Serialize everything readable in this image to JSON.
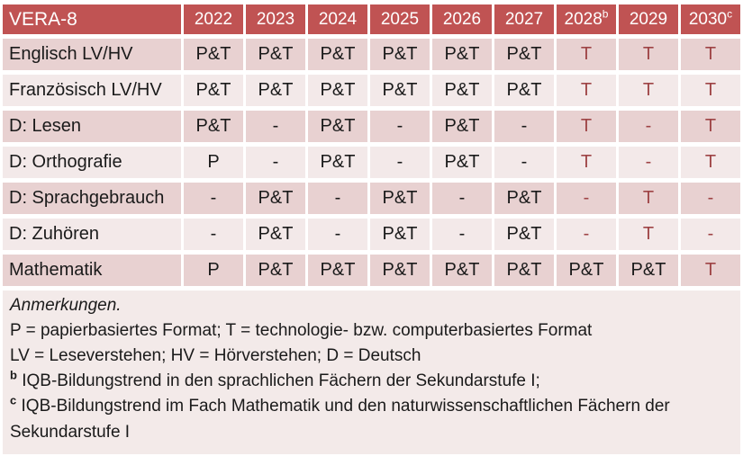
{
  "colors": {
    "header_bg": "#c05353",
    "header_text": "#ffffff",
    "band_dark": "#e8d1d1",
    "band_light": "#f3e9e9",
    "notes_bg": "#f3eae9",
    "cell_text": "#1a1a1a",
    "accent_red_text": "#9e4345",
    "separator_white": "#ffffff"
  },
  "table": {
    "title": "VERA-8",
    "columns": [
      {
        "label": "2022"
      },
      {
        "label": "2023"
      },
      {
        "label": "2024"
      },
      {
        "label": "2025"
      },
      {
        "label": "2026"
      },
      {
        "label": "2027"
      },
      {
        "label": "2028",
        "sup": "b"
      },
      {
        "label": "2029"
      },
      {
        "label": "2030",
        "sup": "c"
      }
    ],
    "rows": [
      {
        "label": "Englisch LV/HV",
        "values": [
          "P&T",
          "P&T",
          "P&T",
          "P&T",
          "P&T",
          "P&T",
          "T",
          "T",
          "T"
        ],
        "red": [
          false,
          false,
          false,
          false,
          false,
          false,
          true,
          true,
          true
        ]
      },
      {
        "label": "Französisch LV/HV",
        "values": [
          "P&T",
          "P&T",
          "P&T",
          "P&T",
          "P&T",
          "P&T",
          "T",
          "T",
          "T"
        ],
        "red": [
          false,
          false,
          false,
          false,
          false,
          false,
          true,
          true,
          true
        ]
      },
      {
        "label": "D: Lesen",
        "values": [
          "P&T",
          "-",
          "P&T",
          "-",
          "P&T",
          "-",
          "T",
          "-",
          "T"
        ],
        "red": [
          false,
          false,
          false,
          false,
          false,
          false,
          true,
          true,
          true
        ]
      },
      {
        "label": "D: Orthografie",
        "values": [
          "P",
          "-",
          "P&T",
          "-",
          "P&T",
          "-",
          "T",
          "-",
          "T"
        ],
        "red": [
          false,
          false,
          false,
          false,
          false,
          false,
          true,
          true,
          true
        ]
      },
      {
        "label": "D: Sprachgebrauch",
        "values": [
          "-",
          "P&T",
          "-",
          "P&T",
          "-",
          "P&T",
          "-",
          "T",
          "-"
        ],
        "red": [
          false,
          false,
          false,
          false,
          false,
          false,
          true,
          true,
          true
        ]
      },
      {
        "label": "D: Zuhören",
        "values": [
          "-",
          "P&T",
          "-",
          "P&T",
          "-",
          "P&T",
          "-",
          "T",
          "-"
        ],
        "red": [
          false,
          false,
          false,
          false,
          false,
          false,
          true,
          true,
          true
        ]
      },
      {
        "label": "Mathematik",
        "values": [
          "P",
          "P&T",
          "P&T",
          "P&T",
          "P&T",
          "P&T",
          "P&T",
          "P&T",
          "T"
        ],
        "red": [
          false,
          false,
          false,
          false,
          false,
          false,
          false,
          false,
          true
        ]
      }
    ]
  },
  "notes": {
    "heading": "Anmerkungen.",
    "lines": [
      {
        "text": "P = papierbasiertes Format; T = technologie- bzw. computerbasiertes Format"
      },
      {
        "text": "LV = Leseverstehen; HV = Hörverstehen; D = Deutsch"
      },
      {
        "sup": "b",
        "text": "IQB-Bildungstrend in den sprachlichen Fächern der Sekundarstufe I;"
      },
      {
        "sup": "c",
        "text": "IQB-Bildungstrend im Fach Mathematik und den naturwissenschaftlichen Fächern der Sekundarstufe I"
      }
    ]
  }
}
